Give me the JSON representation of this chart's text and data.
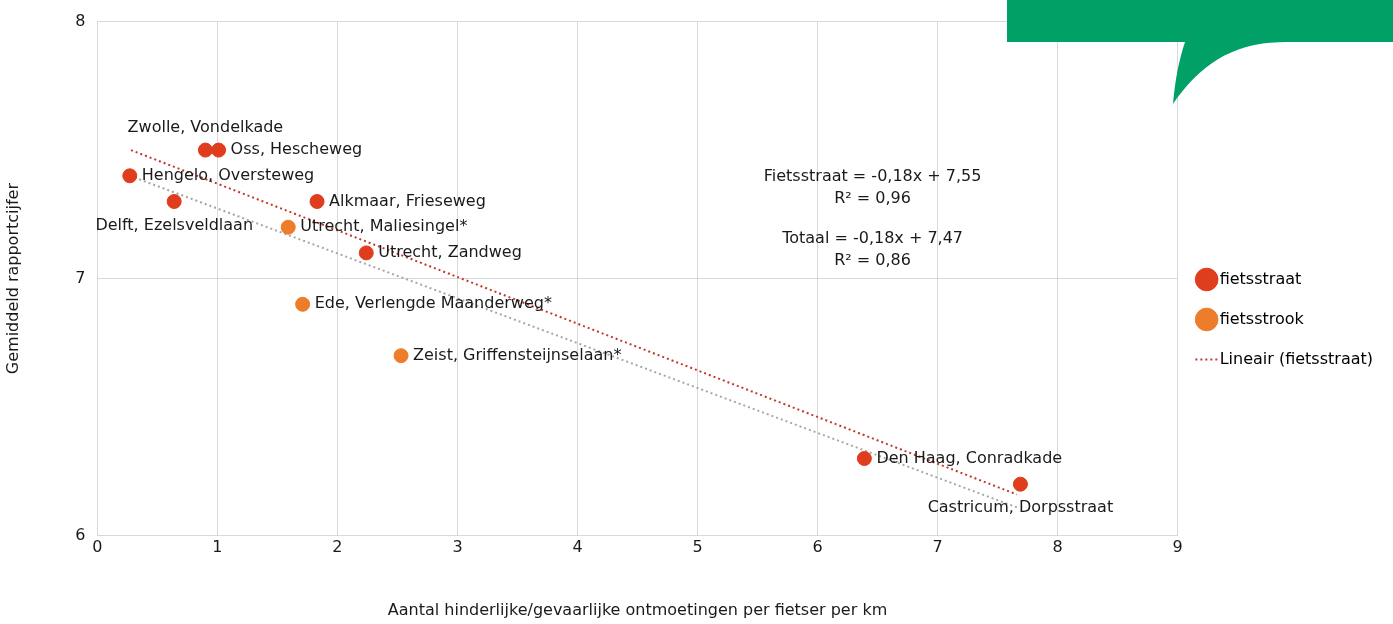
{
  "chart_data": {
    "type": "scatter",
    "xlabel": "Aantal hinderlijke/gevaarlijke ontmoetingen per fietser per km",
    "ylabel": "Gemiddeld rapportcijfer",
    "xlim": [
      0,
      9
    ],
    "xticks": [
      0,
      1,
      2,
      3,
      4,
      5,
      6,
      7,
      8,
      9
    ],
    "ylim": [
      6,
      8
    ],
    "yticks": [
      6,
      7,
      8
    ],
    "grid": true,
    "legend": "right",
    "marker": "circle",
    "series": [
      {
        "name": "fietsstraat",
        "color": "#e03c1e",
        "x": [
          0.9,
          1.01,
          0.27,
          0.64,
          1.83,
          2.24,
          6.39,
          7.69
        ],
        "values": [
          7.5,
          7.5,
          7.4,
          7.3,
          7.3,
          7.1,
          6.3,
          6.2
        ]
      },
      {
        "name": "fietsstrook",
        "color": "#ee7d2b",
        "x": [
          1.59,
          1.71,
          2.53
        ],
        "values": [
          7.2,
          6.9,
          6.7
        ]
      },
      {
        "name": "Lineair (fietsstraat)",
        "type": "line",
        "color": "#c0392b",
        "line_style": "dotted",
        "marker": "none",
        "x": [
          0.28,
          7.66
        ],
        "values": [
          7.5,
          6.16
        ]
      },
      {
        "type": "line",
        "color": "#a6a6a6",
        "line_style": "dotted",
        "marker": "none",
        "x": [
          0.27,
          7.66
        ],
        "values": [
          7.4,
          6.11
        ]
      }
    ],
    "annotations": [
      {
        "text": "Zwolle, Vondelkade",
        "x": 0.9,
        "y": 7.5
      },
      {
        "text": "Oss, Hescheweg",
        "x": 1.01,
        "y": 7.5
      },
      {
        "text": "Hengelo, Oversteweg",
        "x": 0.27,
        "y": 7.4
      },
      {
        "text": "Delft, Ezelsveldlaan",
        "x": 0.64,
        "y": 7.3
      },
      {
        "text": "Alkmaar, Frieseweg",
        "x": 1.83,
        "y": 7.3
      },
      {
        "text": "Utrecht, Maliesingel*",
        "x": 1.59,
        "y": 7.2
      },
      {
        "text": "Utrecht, Zandweg",
        "x": 2.24,
        "y": 7.1
      },
      {
        "text": "Ede, Verlengde Maanderweg*",
        "x": 1.71,
        "y": 6.9
      },
      {
        "text": "Zeist, Griffensteijnselaan*",
        "x": 2.53,
        "y": 6.7
      },
      {
        "text": "Den Haag, Conradkade",
        "x": 6.39,
        "y": 6.3
      },
      {
        "text": "Castricum, Dorpsstraat",
        "x": 7.69,
        "y": 6.2
      },
      "Fietsstraat = -0,18x + 7,55\nR² = 0,96",
      "Totaal = -0,18x + 7,47\nR² = 0,86"
    ]
  }
}
